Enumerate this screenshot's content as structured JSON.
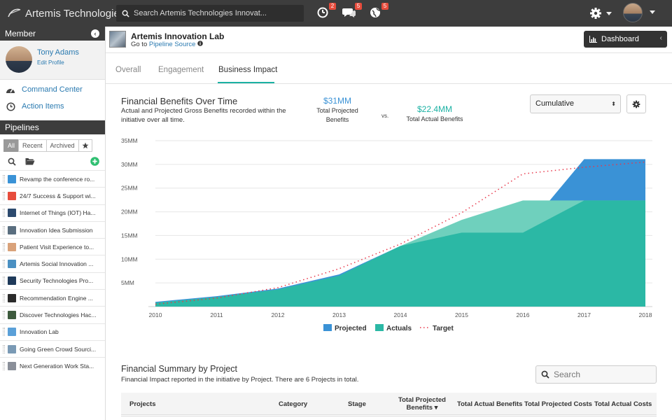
{
  "app": {
    "name": "Artemis Technologies"
  },
  "search": {
    "placeholder": "Search Artemis Technologies Innovat..."
  },
  "notifications": [
    {
      "name": "activity",
      "count": "2"
    },
    {
      "name": "messages",
      "count": "5"
    },
    {
      "name": "global",
      "count": "5"
    }
  ],
  "sidebar": {
    "member_label": "Member",
    "collapse_glyph": "‹",
    "user": {
      "name": "Tony Adams",
      "edit": "Edit Profile"
    },
    "nav": [
      {
        "label": "Command Center",
        "icon": "dashboard-icon"
      },
      {
        "label": "Action Items",
        "icon": "clock-icon"
      }
    ],
    "pipelines_label": "Pipelines",
    "filters": [
      "All",
      "Recent",
      "Archived"
    ],
    "pipelines": [
      {
        "label": "Revamp the conference ro...",
        "color": "#3a92d6"
      },
      {
        "label": "24/7 Success & Support wi...",
        "color": "#e74c3c"
      },
      {
        "label": "Internet of Things (IOT) Ha...",
        "color": "#2c4a6e"
      },
      {
        "label": "Innovation Idea Submission",
        "color": "#5a6e7f"
      },
      {
        "label": "Patient Visit Experience to...",
        "color": "#d9a27a"
      },
      {
        "label": "Artemis Social Innovation ...",
        "color": "#4a90c2"
      },
      {
        "label": "Security Technologies Pro...",
        "color": "#1f3a5a"
      },
      {
        "label": "Recommendation Engine ...",
        "color": "#2b2b2b"
      },
      {
        "label": "Discover Technologies Hac...",
        "color": "#3d5a3d"
      },
      {
        "label": "Innovation Lab",
        "color": "#5aa0d8"
      },
      {
        "label": "Going Green Crowd Sourci...",
        "color": "#7a9ab5"
      },
      {
        "label": "Next Generation Work Sta...",
        "color": "#8a8f99"
      }
    ]
  },
  "header": {
    "title": "Artemis Innovation Lab",
    "goto": "Go to",
    "source_link": "Pipeline Source",
    "dashboard": "Dashboard",
    "dashboard_chevron": "‹"
  },
  "tabs": [
    "Overall",
    "Engagement",
    "Business Impact"
  ],
  "benefits": {
    "title": "Financial Benefits Over Time",
    "description": "Actual and Projected Gross Benefits recorded within the initiative over all time.",
    "projected_value": "$31MM",
    "projected_label": "Total Projected Benefits",
    "vs": "vs.",
    "actual_value": "$22.4MM",
    "actual_label": "Total Actual Benefits",
    "mode": "Cumulative",
    "mode_arrow": "⬍"
  },
  "chart_data": {
    "type": "area",
    "categories": [
      "2010",
      "2011",
      "2012",
      "2013",
      "2014",
      "2015",
      "2016",
      "2017",
      "2018"
    ],
    "y_ticks": [
      "5MM",
      "10MM",
      "15MM",
      "20MM",
      "25MM",
      "30MM",
      "35MM"
    ],
    "ylim": [
      0,
      35
    ],
    "series": [
      {
        "name": "Projected",
        "color": "#3a92d6",
        "values": [
          1.0,
          2.2,
          3.8,
          6.8,
          12.8,
          15.6,
          15.6,
          31.1,
          31.1
        ]
      },
      {
        "name": "Actuals",
        "color": "#2bb8a5",
        "values": [
          0.8,
          2.0,
          3.6,
          6.5,
          12.8,
          18.3,
          22.4,
          22.4,
          22.4
        ]
      },
      {
        "name": "Target",
        "color": "#e8374a",
        "style": "dotted",
        "values": [
          0.5,
          1.8,
          4.0,
          8.0,
          13.2,
          19.8,
          28.0,
          29.4,
          30.5
        ]
      }
    ]
  },
  "summary": {
    "title": "Financial Summary by Project",
    "description": "Financial Impact reported in the initiative by Project. There are 6 Projects in total.",
    "search_placeholder": "Search",
    "columns": {
      "projects": "Projects",
      "category": "Category",
      "stage": "Stage",
      "projected_line1": "Total Projected",
      "projected_line2": "Benefits ▾",
      "actual": "Total Actual Benefits",
      "projected_costs": "Total Projected Costs",
      "actual_costs": "Total Actual Costs"
    }
  }
}
